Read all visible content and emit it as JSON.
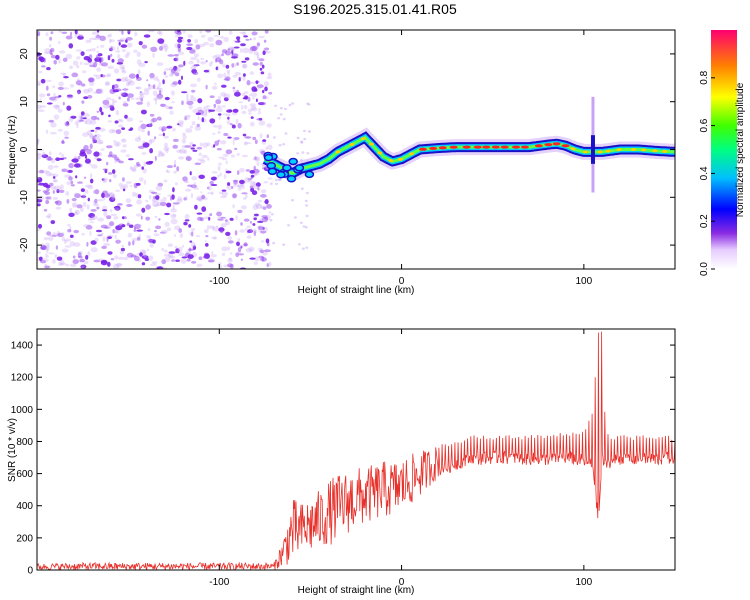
{
  "title": "S196.2025.315.01.41.R05",
  "colors": {
    "snr_line": "#e8302a",
    "purple": "#8a2be2",
    "axis": "#000000"
  },
  "chart_data": [
    {
      "type": "heatmap",
      "title": "",
      "xlabel": "Height of straight line (km)",
      "ylabel": "Frequency (Hz)",
      "xlim": [
        -200,
        150
      ],
      "ylim": [
        -25,
        25
      ],
      "x_ticks": [
        -100,
        0,
        100
      ],
      "y_ticks": [
        -20,
        -10,
        0,
        10,
        20
      ],
      "colorbar": {
        "label": "Normalized spectral amplitude",
        "range": [
          0,
          1
        ],
        "ticks": [
          0.0,
          0.2,
          0.4,
          0.6,
          0.8
        ],
        "tick_labels": [
          "0.0",
          "0.2",
          "0.4",
          "0.6",
          "0.8"
        ]
      },
      "noise_region_x": [
        -200,
        -72
      ],
      "ridge": {
        "x": [
          -75,
          -70,
          -65,
          -60,
          -55,
          -50,
          -45,
          -40,
          -35,
          -30,
          -25,
          -20,
          -15,
          -10,
          -5,
          0,
          5,
          10,
          20,
          30,
          40,
          50,
          60,
          70,
          80,
          85,
          90,
          95,
          100,
          105,
          110,
          120,
          130,
          140,
          150
        ],
        "freq": [
          -2,
          -3,
          -4,
          -5,
          -4,
          -3.5,
          -3,
          -2,
          -0.5,
          0.5,
          1.5,
          2.5,
          0.5,
          -1.5,
          -2.5,
          -2,
          -1,
          0,
          0.3,
          0.5,
          0.5,
          0.5,
          0.5,
          0.5,
          1,
          1.2,
          0.8,
          0,
          -0.5,
          -0.5,
          -0.5,
          0,
          0,
          -0.3,
          -0.5
        ]
      }
    },
    {
      "type": "line",
      "title": "",
      "xlabel": "Height of straight line (km)",
      "ylabel": "SNR (10 * v/v)",
      "xlim": [
        -200,
        150
      ],
      "ylim": [
        0,
        1500
      ],
      "x_ticks": [
        -100,
        0,
        100
      ],
      "y_ticks": [
        0,
        200,
        400,
        600,
        800,
        1000,
        1200,
        1400
      ],
      "series": [
        {
          "name": "SNR",
          "x": [
            -200,
            -180,
            -160,
            -140,
            -120,
            -100,
            -80,
            -70,
            -65,
            -60,
            -55,
            -50,
            -45,
            -40,
            -35,
            -30,
            -25,
            -20,
            -15,
            -10,
            -5,
            0,
            5,
            10,
            15,
            20,
            25,
            30,
            35,
            40,
            50,
            60,
            70,
            80,
            90,
            100,
            105,
            108,
            110,
            112,
            115,
            120,
            130,
            140,
            150
          ],
          "values": [
            20,
            25,
            25,
            25,
            25,
            30,
            30,
            30,
            100,
            200,
            220,
            250,
            260,
            280,
            320,
            360,
            380,
            400,
            420,
            440,
            440,
            460,
            500,
            530,
            580,
            620,
            640,
            660,
            680,
            690,
            700,
            700,
            690,
            690,
            700,
            680,
            650,
            300,
            700,
            650,
            680,
            690,
            690,
            690,
            700
          ],
          "envelope_low": [
            0,
            0,
            0,
            0,
            0,
            0,
            0,
            0,
            20,
            40,
            80,
            100,
            120,
            150,
            180,
            220,
            250,
            280,
            300,
            320,
            330,
            350,
            400,
            450,
            520,
            560,
            600,
            620,
            620,
            630,
            640,
            640,
            640,
            630,
            640,
            620,
            500,
            30,
            600,
            600,
            620,
            620,
            620,
            620,
            640
          ],
          "envelope_high": [
            40,
            45,
            45,
            45,
            45,
            45,
            45,
            45,
            200,
            450,
            420,
            460,
            500,
            560,
            600,
            620,
            640,
            640,
            660,
            680,
            680,
            700,
            720,
            740,
            760,
            780,
            800,
            810,
            820,
            840,
            840,
            840,
            840,
            850,
            860,
            880,
            1000,
            1500,
            1500,
            850,
            840,
            840,
            840,
            840,
            840
          ]
        }
      ]
    }
  ]
}
